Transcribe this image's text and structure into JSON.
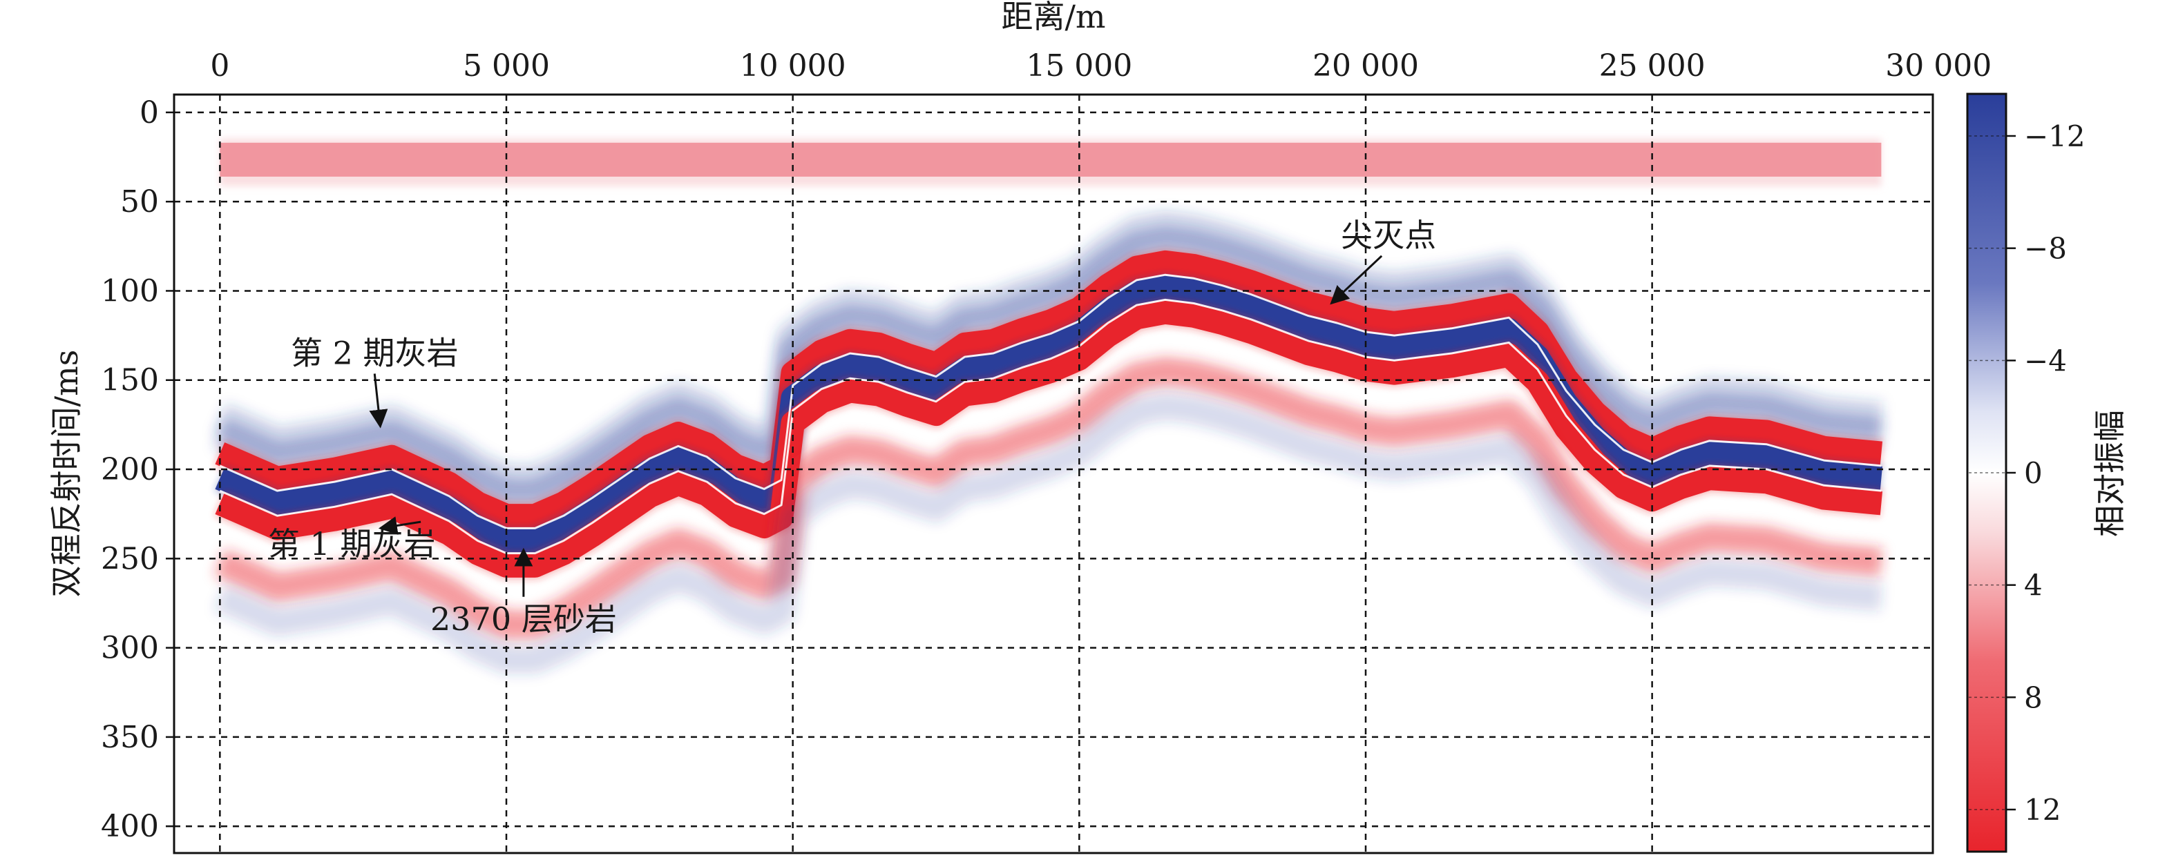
{
  "chart_data": {
    "type": "heatmap",
    "title": "",
    "xlabel": "距离/m",
    "ylabel": "双程反射时间/ms",
    "colorbar_label": "相对振幅",
    "xlim": [
      -800,
      29900
    ],
    "ylim": [
      -10,
      415
    ],
    "x_ticks": [
      0,
      5000,
      10000,
      15000,
      20000,
      25000,
      30000
    ],
    "x_tick_labels": [
      "0",
      "5 000",
      "10 000",
      "15 000",
      "20 000",
      "25 000",
      "30 000"
    ],
    "y_ticks": [
      0,
      50,
      100,
      150,
      200,
      250,
      300,
      350,
      400
    ],
    "y_tick_labels": [
      "0",
      "50",
      "100",
      "150",
      "200",
      "250",
      "300",
      "350",
      "400"
    ],
    "colorbar_range": [
      -13.5,
      13.5
    ],
    "colorbar_ticks": [
      -12,
      -8,
      -4,
      0,
      4,
      8,
      12
    ],
    "colorbar_tick_labels": [
      "−12",
      "−8",
      "−4",
      "0",
      "4",
      "8",
      "12"
    ],
    "colormap": {
      "negative": "#2a3e9a",
      "zero": "#ffffff",
      "positive": "#e8242c"
    },
    "grid": true,
    "x_axis_position": "top",
    "reflector": {
      "x": [
        0,
        1000,
        2000,
        3000,
        4000,
        4500,
        5000,
        5500,
        6000,
        6500,
        7000,
        7500,
        8000,
        8500,
        9000,
        9500,
        9800,
        10000,
        10500,
        11000,
        11500,
        12000,
        12500,
        13000,
        13500,
        14000,
        14500,
        15000,
        15500,
        16000,
        16500,
        17000,
        17500,
        18000,
        18500,
        19000,
        19500,
        20000,
        20500,
        21000,
        21500,
        22000,
        22500,
        23000,
        23500,
        24000,
        24500,
        25000,
        25500,
        26000,
        27000,
        28000,
        29000
      ],
      "center_time_ms": [
        205,
        219,
        214,
        207,
        222,
        233,
        240,
        240,
        233,
        223,
        212,
        201,
        194,
        200,
        212,
        218,
        213,
        160,
        148,
        142,
        144,
        150,
        155,
        144,
        142,
        136,
        131,
        124,
        111,
        101,
        98,
        100,
        104,
        109,
        115,
        121,
        125,
        130,
        132,
        130,
        128,
        125,
        122,
        137,
        163,
        182,
        196,
        203,
        196,
        191,
        193,
        202,
        205
      ],
      "band_thickness_ms": 14
    },
    "top_band": {
      "y_range_ms": [
        17,
        36
      ],
      "x_range": [
        0,
        29000
      ],
      "polarity": "positive"
    },
    "lower_weak_band_offset_ms": 47
  },
  "annotations": {
    "layer2": {
      "label": "第 2 期灰岩",
      "x": 2700,
      "y": 141,
      "arrow_to": [
        2800,
        176
      ]
    },
    "layer1": {
      "label": "第 1 期灰岩",
      "x": 2300,
      "y": 248,
      "arrow_to": [
        2800,
        233
      ]
    },
    "sandstone": {
      "label": "2370 层砂岩",
      "x": 5300,
      "y": 290,
      "arrow_to": [
        5300,
        245
      ]
    },
    "pinchout": {
      "label": "尖灭点",
      "x": 20400,
      "y": 75,
      "arrow_to": [
        19400,
        107
      ]
    }
  }
}
